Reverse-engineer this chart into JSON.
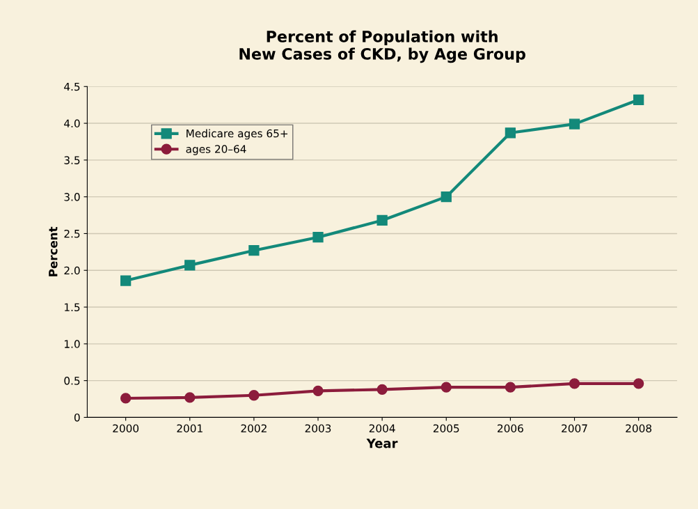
{
  "chart_data": {
    "type": "line",
    "title": "Percent of Population with\nNew Cases of CKD, by Age Group",
    "xlabel": "Year",
    "ylabel": "Percent",
    "categories": [
      "2000",
      "2001",
      "2002",
      "2003",
      "2004",
      "2005",
      "2006",
      "2007",
      "2008"
    ],
    "series": [
      {
        "name": "Medicare ages 65+",
        "color": "#13897a",
        "marker": "square",
        "values": [
          1.86,
          2.07,
          2.27,
          2.45,
          2.68,
          3.0,
          3.87,
          3.99,
          4.32
        ]
      },
      {
        "name": "ages 20–64",
        "color": "#8c1c3c",
        "marker": "circle",
        "values": [
          0.26,
          0.27,
          0.3,
          0.36,
          0.38,
          0.41,
          0.41,
          0.46,
          0.46
        ]
      }
    ],
    "ylim": [
      0,
      4.5
    ],
    "yticks": [
      0,
      {
        "value": 0.5,
        "label": "0.5"
      },
      {
        "value": 1,
        "label": "1.0"
      },
      {
        "value": 1.5,
        "label": "1.5"
      },
      {
        "value": 2,
        "label": "2.0"
      },
      {
        "value": 2.5,
        "label": "2.5"
      },
      {
        "value": 3,
        "label": "3.0"
      },
      {
        "value": 3.5,
        "label": "3.5"
      },
      {
        "value": 4,
        "label": "4.0"
      },
      {
        "value": 4.5,
        "label": "4.5"
      }
    ],
    "grid": "y",
    "legend": "top left",
    "line_style": "solid"
  }
}
